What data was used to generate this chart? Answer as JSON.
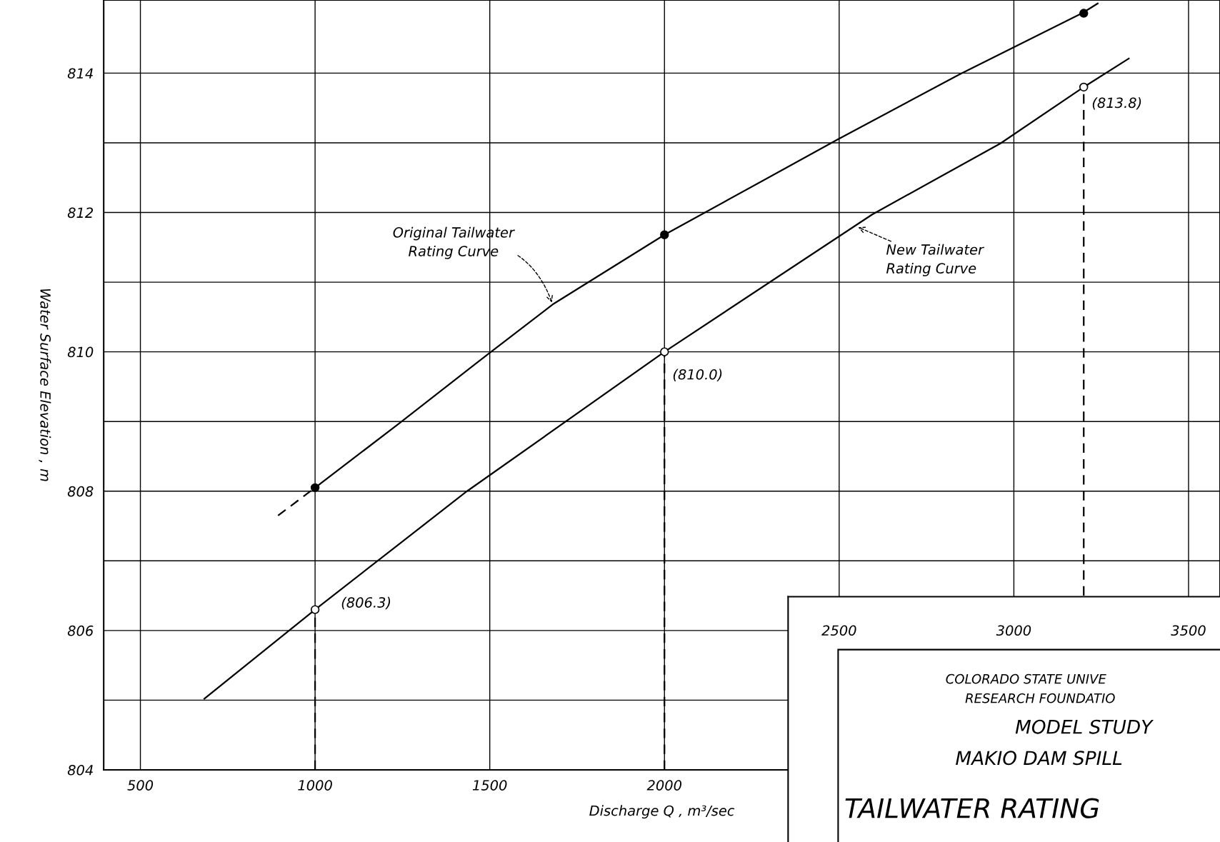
{
  "chart_data": {
    "type": "line",
    "xlabel": "Discharge Q , m³/sec",
    "ylabel": "Water Surface Elevation , m",
    "xlim": [
      395,
      3590
    ],
    "ylim": [
      804,
      815.05
    ],
    "xticks": [
      500,
      1000,
      1500,
      2000,
      {
        "value": 2500,
        "label": null
      },
      {
        "value": 3000,
        "label": null
      },
      {
        "value": 3500,
        "label": null
      }
    ],
    "x2lim": [
      395,
      3590
    ],
    "x2ticks": [
      2500,
      3000,
      3500
    ],
    "yticks": [
      804,
      {
        "value": 805,
        "label": null
      },
      806,
      {
        "value": 807,
        "label": null
      },
      808,
      {
        "value": 809,
        "label": null
      },
      810,
      {
        "value": 811,
        "label": null
      },
      812,
      {
        "value": 813,
        "label": null
      },
      814
    ],
    "grid": true,
    "series": [
      {
        "color": "#000000",
        "line_style": "dashed",
        "x": [
          894,
          1000
        ],
        "values": [
          807.65,
          808.05
        ]
      },
      {
        "color": "#000000",
        "line_style": "solid",
        "x": [
          1000,
          1240,
          1493,
          1680,
          2000,
          2493,
          2847,
          3195,
          3240
        ],
        "values": [
          808.05,
          808.97,
          809.96,
          810.68,
          811.68,
          813.04,
          813.99,
          814.86,
          815.0
        ]
      },
      {
        "type": "scatter",
        "color": "#000000",
        "marker": "circle",
        "x": [
          1000,
          2000,
          3200
        ],
        "values": [
          808.05,
          811.68,
          814.86
        ]
      },
      {
        "color": "#000000",
        "line_style": "solid",
        "x": [
          683,
          1000,
          1435,
          2000,
          2594,
          2961,
          3200,
          3329
        ],
        "values": [
          805.02,
          806.3,
          808.0,
          810.0,
          811.97,
          812.99,
          813.8,
          814.21
        ]
      },
      {
        "type": "scatter",
        "color": "#ffffff",
        "marker": "circle",
        "x": [
          1000,
          2000,
          3200
        ],
        "values": [
          806.3,
          810.0,
          813.8
        ]
      },
      {
        "color": "#000000",
        "line_style": "dashed",
        "x": [
          1000,
          1000
        ],
        "values": [
          804,
          806.3
        ]
      },
      {
        "color": "#000000",
        "line_style": "dashed",
        "x": [
          2000,
          2000
        ],
        "values": [
          804,
          810.0
        ]
      },
      {
        "color": "#000000",
        "line_style": "dashed",
        "x": [
          3200,
          3200
        ],
        "values": [
          806.5,
          813.8
        ]
      }
    ],
    "annotations": [
      {
        "text": "Original Tailwater\nRating Curve",
        "x": 1680,
        "y": 810.68
      },
      {
        "text": "New Tailwater\nRating Curve",
        "x": 2549,
        "y": 811.8
      },
      {
        "text": "(806.3)",
        "x": 1000,
        "y": 806.3
      },
      {
        "text": "(810.0)",
        "x": 2000,
        "y": 810.0
      },
      {
        "text": "(813.8)",
        "x": 3200,
        "y": 813.8
      },
      "COLORADO STATE UNIVE",
      "RESEARCH FOUNDATIO",
      "MODEL STUDY",
      "MAKIO DAM SPILL",
      "TAILWATER RATING"
    ]
  }
}
